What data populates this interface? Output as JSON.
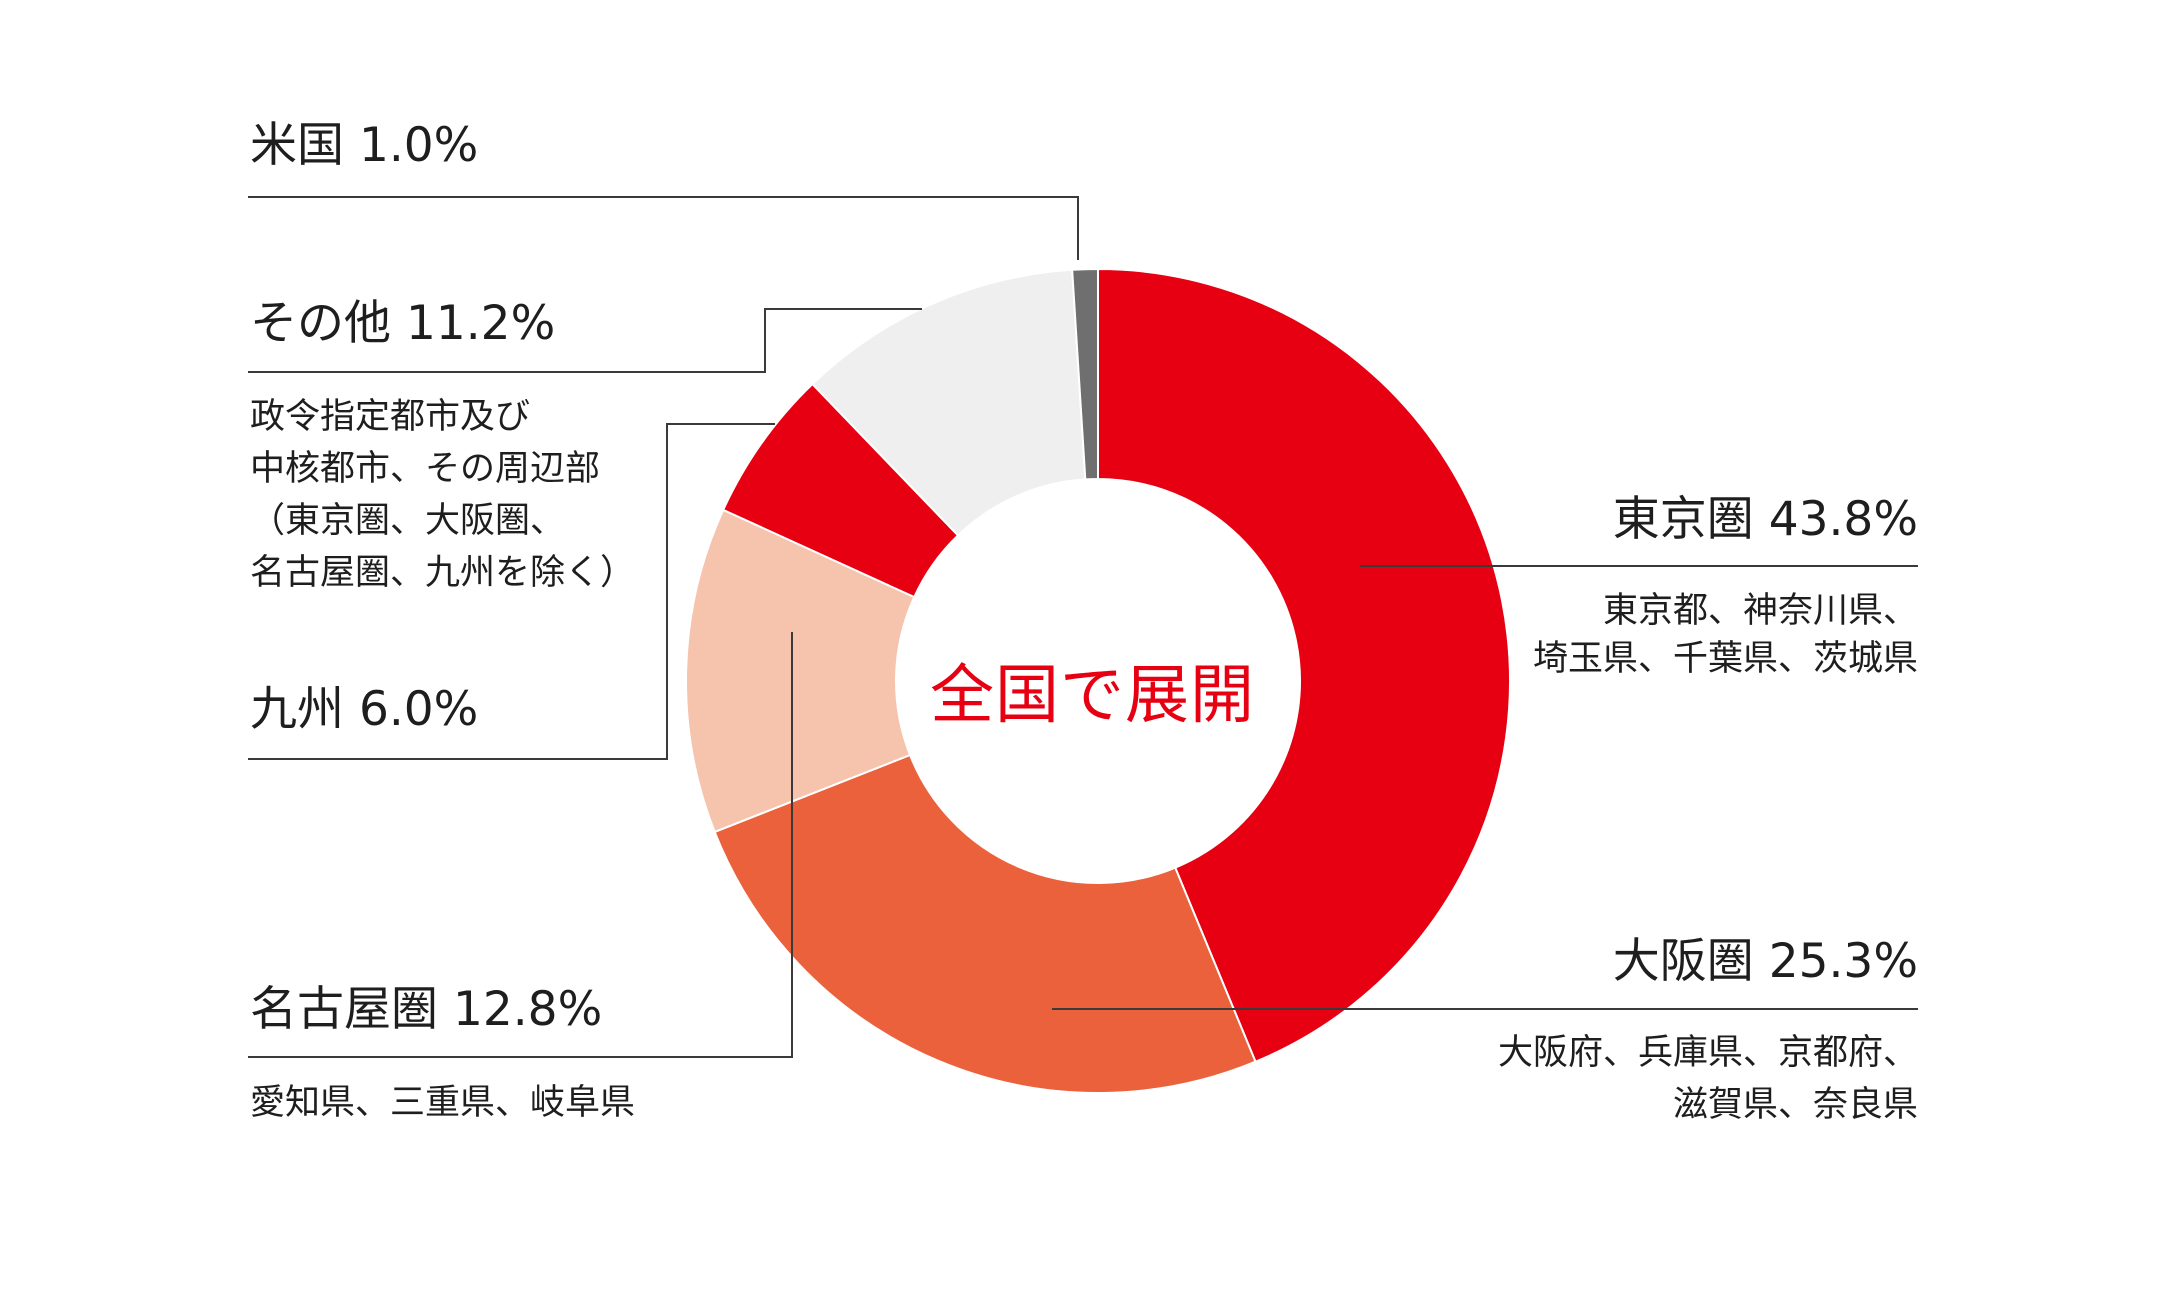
{
  "chart_data": {
    "type": "pie",
    "donut": true,
    "center_label": "全国で展開",
    "slices": [
      {
        "label": "東京圏",
        "value": 43.8,
        "value_text": "43.8%",
        "color": "#e60012",
        "detail": "東京都、神奈川県、埼玉県、千葉県、茨城県"
      },
      {
        "label": "大阪圏",
        "value": 25.3,
        "value_text": "25.3%",
        "color": "#ea613c",
        "detail": "大阪府、兵庫県、京都府、滋賀県、奈良県"
      },
      {
        "label": "名古屋圏",
        "value": 12.8,
        "value_text": "12.8%",
        "color": "#f6c3ac",
        "detail": "愛知県、三重県、岐阜県"
      },
      {
        "label": "九州",
        "value": 6.0,
        "value_text": "6.0%",
        "color": "#e60012",
        "detail": ""
      },
      {
        "label": "その他",
        "value": 11.2,
        "value_text": "11.2%",
        "color": "#efefef",
        "detail": "政令指定都市及び中核都市、その周辺部（東京圏、大阪圏、名古屋圏、九州を除く）"
      },
      {
        "label": "米国",
        "value": 1.0,
        "value_text": "1.0%",
        "color": "#6f6f6f",
        "detail": ""
      }
    ]
  },
  "labels": {
    "tokyo": "東京圏 43.8%",
    "tokyo_detail_1": "東京都、神奈川県、",
    "tokyo_detail_2": "埼玉県、千葉県、茨城県",
    "osaka": "大阪圏 25.3%",
    "osaka_detail_1": "大阪府、兵庫県、京都府、",
    "osaka_detail_2": "滋賀県、奈良県",
    "nagoya": "名古屋圏 12.8%",
    "nagoya_detail": "愛知県、三重県、岐阜県",
    "kyushu": "九州 6.0%",
    "other": "その他 11.2%",
    "other_detail_1": "政令指定都市及び",
    "other_detail_2": "中核都市、その周辺部",
    "other_detail_3": "（東京圏、大阪圏、",
    "other_detail_4": "名古屋圏、九州を除く）",
    "us": "米国 1.0%"
  }
}
